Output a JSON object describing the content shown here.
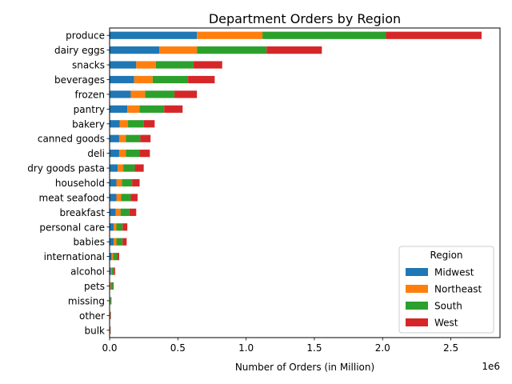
{
  "chart_data": {
    "type": "bar",
    "orientation": "horizontal",
    "stacked": true,
    "title": "Department Orders by Region",
    "xlabel": "Number of Orders (in Million)",
    "ylabel": "",
    "x_offset_label": "1e6",
    "xlim": [
      0,
      2.86
    ],
    "xticks": [
      0.0,
      0.5,
      1.0,
      1.5,
      2.0,
      2.5
    ],
    "xtick_labels": [
      "0.0",
      "0.5",
      "1.0",
      "1.5",
      "2.0",
      "2.5"
    ],
    "categories": [
      "produce",
      "dairy eggs",
      "snacks",
      "beverages",
      "frozen",
      "pantry",
      "bakery",
      "canned goods",
      "deli",
      "dry goods pasta",
      "household",
      "meat seafood",
      "breakfast",
      "personal care",
      "babies",
      "international",
      "alcohol",
      "pets",
      "missing",
      "other",
      "bulk"
    ],
    "series": [
      {
        "name": "Midwest",
        "color": "#1f77b4",
        "values": [
          0.64,
          0.365,
          0.195,
          0.18,
          0.155,
          0.13,
          0.075,
          0.07,
          0.07,
          0.06,
          0.05,
          0.05,
          0.045,
          0.03,
          0.03,
          0.015,
          0.01,
          0.005,
          0.005,
          0.002,
          0.002
        ]
      },
      {
        "name": "Northeast",
        "color": "#ff7f0e",
        "values": [
          0.48,
          0.275,
          0.145,
          0.135,
          0.105,
          0.09,
          0.06,
          0.05,
          0.05,
          0.04,
          0.04,
          0.035,
          0.035,
          0.02,
          0.02,
          0.01,
          0.005,
          0.005,
          0.002,
          0.002,
          0.002
        ]
      },
      {
        "name": "South",
        "color": "#2ca02c",
        "values": [
          0.905,
          0.51,
          0.275,
          0.26,
          0.215,
          0.18,
          0.115,
          0.105,
          0.1,
          0.085,
          0.075,
          0.07,
          0.065,
          0.045,
          0.045,
          0.03,
          0.015,
          0.015,
          0.005,
          0.003,
          0.002
        ]
      },
      {
        "name": "West",
        "color": "#d62728",
        "values": [
          0.7,
          0.405,
          0.21,
          0.195,
          0.165,
          0.135,
          0.08,
          0.075,
          0.075,
          0.065,
          0.055,
          0.05,
          0.05,
          0.035,
          0.03,
          0.015,
          0.01,
          0.005,
          0.002,
          0.003,
          0.002
        ]
      }
    ],
    "legend": {
      "title": "Region",
      "position": "lower-right"
    },
    "grid": false
  }
}
